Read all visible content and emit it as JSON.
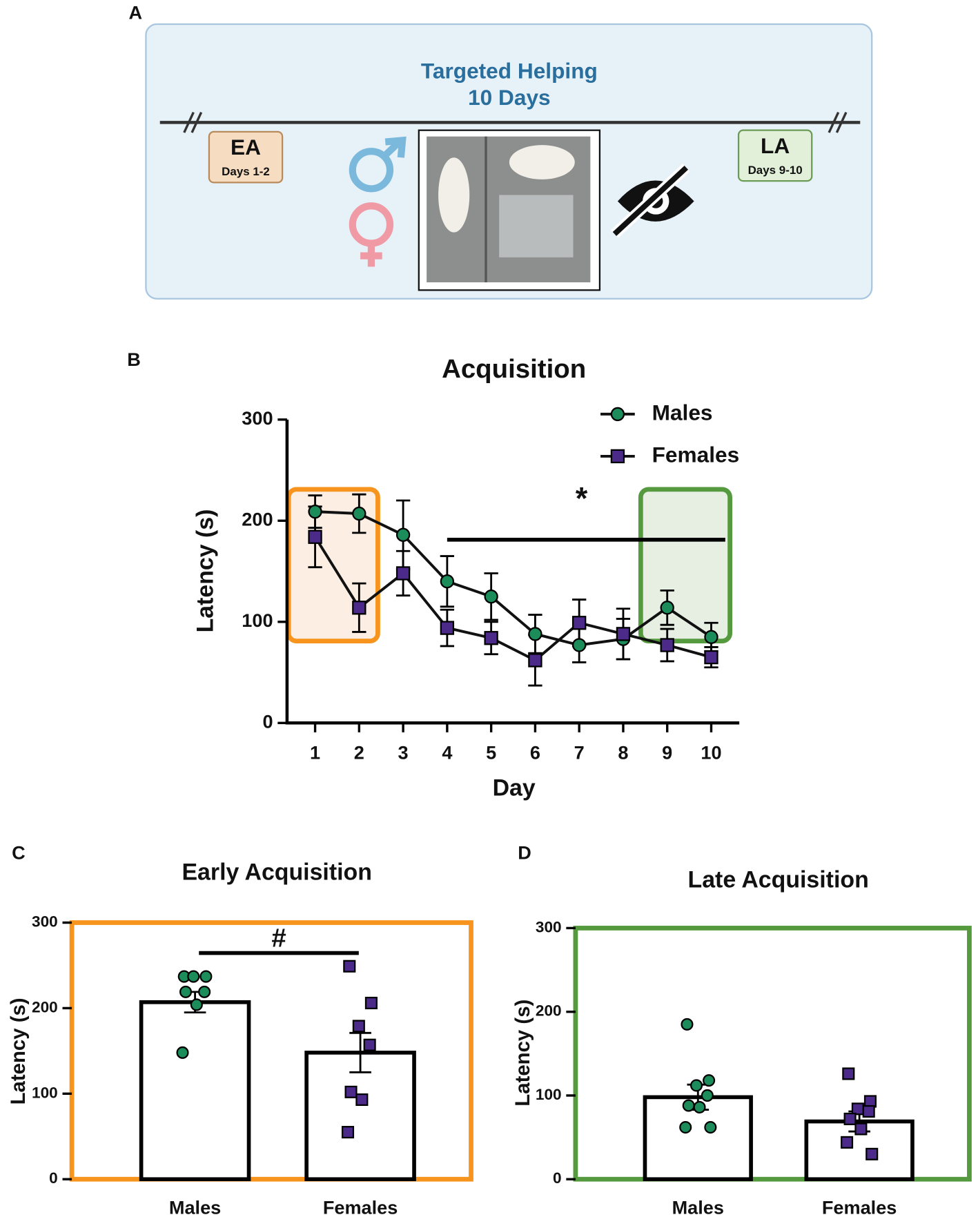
{
  "panel_labels": [
    "A",
    "B",
    "C",
    "D"
  ],
  "diagram": {
    "title_lines": [
      "Targeted Helping",
      "10 Days"
    ],
    "start": {
      "label": "EA",
      "sublabel": "Days 1-2"
    },
    "end": {
      "label": "LA",
      "sublabel": "Days 9-10"
    }
  },
  "chart_data": [
    {
      "type": "line",
      "title": "Acquisition",
      "x_label": "Day",
      "y_label": "Latency (s)",
      "categories": [
        "1",
        "2",
        "3",
        "4",
        "5",
        "6",
        "7",
        "8",
        "9",
        "10"
      ],
      "series": [
        {
          "name": "Males",
          "color": "#1c8c5a",
          "marker": "circle",
          "values": [
            209,
            207,
            186,
            140,
            125,
            88,
            77,
            83,
            114,
            85
          ],
          "errors": [
            16,
            19,
            34,
            25,
            23,
            19,
            17,
            20,
            17,
            14
          ]
        },
        {
          "name": "Females",
          "color": "#4b2a8a",
          "marker": "square",
          "values": [
            184,
            114,
            148,
            94,
            84,
            62,
            99,
            88,
            77,
            65
          ],
          "errors": [
            30,
            24,
            22,
            18,
            16,
            25,
            23,
            25,
            16,
            10
          ]
        }
      ],
      "ylim": [
        0,
        300
      ],
      "yticks": [
        0,
        100,
        200,
        300
      ],
      "highlights": [
        {
          "from": "1",
          "to": "2",
          "color": "#f7941d",
          "fill": "#fdeee3"
        },
        {
          "from": "9",
          "to": "10",
          "color": "#559a3e",
          "fill": "#e6efe2"
        }
      ],
      "significance": {
        "label": "*",
        "from": "4",
        "to": "10"
      },
      "legend": "top-right"
    },
    {
      "type": "bar",
      "title": "Early Acquisition",
      "y_label": "Latency (s)",
      "categories": [
        "Males",
        "Females"
      ],
      "values": [
        207,
        148
      ],
      "errors": [
        12,
        23
      ],
      "points": [
        [
          237,
          237,
          237,
          219,
          219,
          204,
          148
        ],
        [
          249,
          206,
          179,
          157,
          102,
          93,
          55
        ]
      ],
      "point_colors": [
        "#1c8c5a",
        "#4b2a8a"
      ],
      "point_markers": [
        "circle",
        "square"
      ],
      "frame_color": "#f7941d",
      "ylim": [
        0,
        300
      ],
      "yticks": [
        0,
        100,
        200,
        300
      ],
      "significance": {
        "label": "#",
        "from": "Males",
        "to": "Females"
      }
    },
    {
      "type": "bar",
      "title": "Late Acquisition",
      "y_label": "Latency (s)",
      "categories": [
        "Males",
        "Females"
      ],
      "values": [
        98,
        69
      ],
      "errors": [
        15,
        12
      ],
      "points": [
        [
          185,
          118,
          112,
          100,
          88,
          86,
          62,
          62
        ],
        [
          126,
          93,
          84,
          81,
          72,
          60,
          44,
          30
        ]
      ],
      "point_colors": [
        "#1c8c5a",
        "#4b2a8a"
      ],
      "point_markers": [
        "circle",
        "square"
      ],
      "frame_color": "#559a3e",
      "ylim": [
        0,
        300
      ],
      "yticks": [
        0,
        100,
        200,
        300
      ]
    }
  ]
}
